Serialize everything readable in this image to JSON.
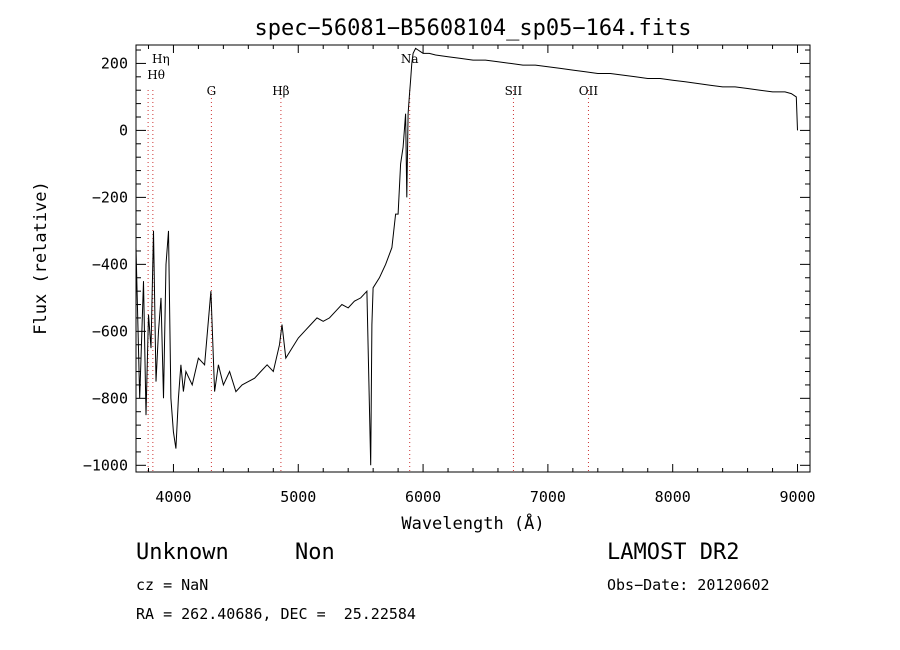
{
  "chart_data": {
    "type": "line",
    "title": "spec−56081−B5608104_sp05−164.fits",
    "xlabel": "Wavelength (Å)",
    "ylabel": "Flux (relative)",
    "xlim": [
      3700,
      9100
    ],
    "ylim": [
      -1020,
      255
    ],
    "x_ticks": [
      4000,
      5000,
      6000,
      7000,
      8000,
      9000
    ],
    "y_ticks": [
      -1000,
      -800,
      -600,
      -400,
      -200,
      0,
      200
    ],
    "x_tick_labels": [
      "4000",
      "5000",
      "6000",
      "7000",
      "8000",
      "9000"
    ],
    "y_tick_labels": [
      "−1000",
      "−800",
      "−600",
      "−400",
      "−200",
      "0",
      "200"
    ],
    "grid": false,
    "line_color": "#000000",
    "marker_color": "#cc3333",
    "series": [
      {
        "x": [
          3700,
          3730,
          3760,
          3780,
          3800,
          3820,
          3840,
          3860,
          3880,
          3900,
          3920,
          3940,
          3960,
          3980,
          4000,
          4020,
          4040,
          4060,
          4080,
          4100,
          4150,
          4200,
          4250,
          4300,
          4330,
          4360,
          4400,
          4450,
          4500,
          4550,
          4600,
          4650,
          4700,
          4750,
          4800,
          4850,
          4870,
          4900,
          4950,
          5000,
          5050,
          5100,
          5150,
          5200,
          5250,
          5300,
          5350,
          5400,
          5450,
          5500,
          5550,
          5580,
          5590,
          5600,
          5650,
          5700,
          5750,
          5780,
          5800,
          5820,
          5840,
          5860,
          5870,
          5880,
          5890,
          5900,
          5910,
          5920,
          5940,
          5960,
          5980,
          6000,
          6050,
          6100,
          6200,
          6300,
          6400,
          6500,
          6600,
          6700,
          6800,
          6900,
          7000,
          7100,
          7200,
          7300,
          7400,
          7500,
          7600,
          7700,
          7800,
          7900,
          8000,
          8100,
          8200,
          8300,
          8400,
          8500,
          8600,
          8700,
          8800,
          8900,
          8950,
          8990,
          9000
        ],
        "y": [
          -350,
          -800,
          -450,
          -850,
          -550,
          -650,
          -300,
          -750,
          -600,
          -500,
          -800,
          -400,
          -300,
          -800,
          -900,
          -950,
          -800,
          -700,
          -780,
          -720,
          -760,
          -680,
          -700,
          -480,
          -780,
          -700,
          -760,
          -720,
          -780,
          -760,
          -750,
          -740,
          -720,
          -700,
          -720,
          -640,
          -580,
          -680,
          -650,
          -620,
          -600,
          -580,
          -560,
          -570,
          -560,
          -540,
          -520,
          -530,
          -510,
          -500,
          -480,
          -1000,
          -580,
          -470,
          -440,
          -400,
          -350,
          -250,
          -250,
          -100,
          -50,
          50,
          -200,
          50,
          100,
          150,
          200,
          230,
          245,
          240,
          235,
          230,
          230,
          225,
          220,
          215,
          210,
          210,
          205,
          200,
          195,
          195,
          190,
          185,
          180,
          175,
          170,
          170,
          165,
          160,
          155,
          155,
          150,
          145,
          140,
          135,
          130,
          130,
          125,
          120,
          115,
          115,
          110,
          100,
          0
        ]
      }
    ],
    "line_markers": [
      {
        "label": "Hη",
        "wavelength": 3835
      },
      {
        "label": "Hθ",
        "wavelength": 3797
      },
      {
        "label": "G",
        "wavelength": 4304
      },
      {
        "label": "Hβ",
        "wavelength": 4861
      },
      {
        "label": "Na",
        "wavelength": 5893
      },
      {
        "label": "SII",
        "wavelength": 6724
      },
      {
        "label": "OII",
        "wavelength": 7325
      }
    ]
  },
  "info": {
    "class": "Unknown",
    "subclass": "Non",
    "survey": "LAMOST DR2",
    "cz": "cz = NaN",
    "obs_date": "Obs−Date: 20120602",
    "radec": "RA = 262.40686, DEC =  25.22584"
  }
}
